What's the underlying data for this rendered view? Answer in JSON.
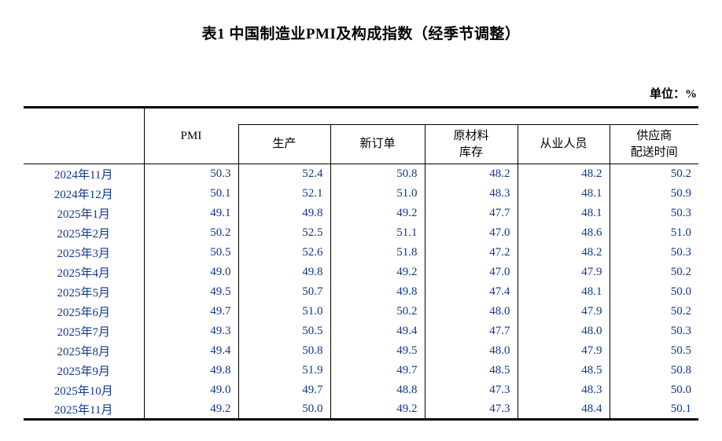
{
  "title": "表1 中国制造业PMI及构成指数（经季节调整）",
  "unit_label": "单位：%",
  "colors": {
    "data_text": "#10388c",
    "border": "#000000"
  },
  "table": {
    "columns": [
      "PMI",
      "生产",
      "新订单",
      "原材料\n库存",
      "从业人员",
      "供应商\n配送时间"
    ],
    "rows": [
      {
        "period": "2024年11月",
        "values": [
          "50.3",
          "52.4",
          "50.8",
          "48.2",
          "48.2",
          "50.2"
        ]
      },
      {
        "period": "2024年12月",
        "values": [
          "50.1",
          "52.1",
          "51.0",
          "48.3",
          "48.1",
          "50.9"
        ]
      },
      {
        "period": "2025年1月",
        "values": [
          "49.1",
          "49.8",
          "49.2",
          "47.7",
          "48.1",
          "50.3"
        ]
      },
      {
        "period": "2025年2月",
        "values": [
          "50.2",
          "52.5",
          "51.1",
          "47.0",
          "48.6",
          "51.0"
        ]
      },
      {
        "period": "2025年3月",
        "values": [
          "50.5",
          "52.6",
          "51.8",
          "47.2",
          "48.2",
          "50.3"
        ]
      },
      {
        "period": "2025年4月",
        "values": [
          "49.0",
          "49.8",
          "49.2",
          "47.0",
          "47.9",
          "50.2"
        ]
      },
      {
        "period": "2025年5月",
        "values": [
          "49.5",
          "50.7",
          "49.8",
          "47.4",
          "48.1",
          "50.0"
        ]
      },
      {
        "period": "2025年6月",
        "values": [
          "49.7",
          "51.0",
          "50.2",
          "48.0",
          "47.9",
          "50.2"
        ]
      },
      {
        "period": "2025年7月",
        "values": [
          "49.3",
          "50.5",
          "49.4",
          "47.7",
          "48.0",
          "50.3"
        ]
      },
      {
        "period": "2025年8月",
        "values": [
          "49.4",
          "50.8",
          "49.5",
          "48.0",
          "47.9",
          "50.5"
        ]
      },
      {
        "period": "2025年9月",
        "values": [
          "49.8",
          "51.9",
          "49.7",
          "48.5",
          "48.5",
          "50.8"
        ]
      },
      {
        "period": "2025年10月",
        "values": [
          "49.0",
          "49.7",
          "48.8",
          "47.3",
          "48.3",
          "50.0"
        ]
      },
      {
        "period": "2025年11月",
        "values": [
          "49.2",
          "50.0",
          "49.2",
          "47.3",
          "48.4",
          "50.1"
        ]
      }
    ]
  }
}
